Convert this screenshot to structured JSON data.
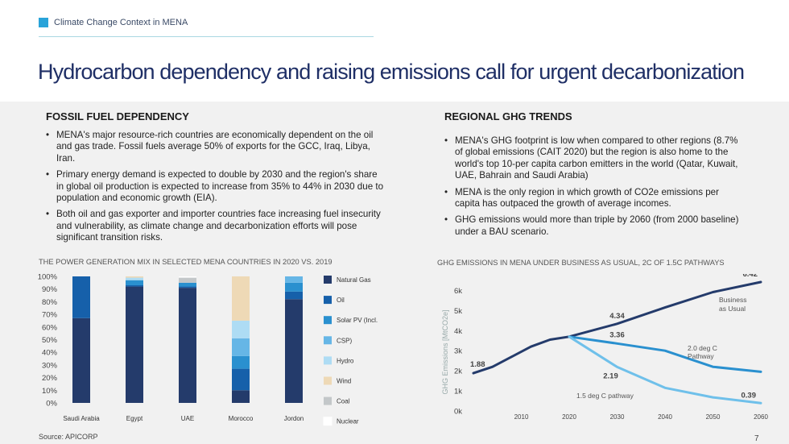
{
  "header": {
    "section": "Climate Change Context in MENA",
    "title": "Hydrocarbon dependency and raising emissions call for urgent decarbonization"
  },
  "left": {
    "heading": "FOSSIL FUEL DEPENDENCY",
    "bullets": [
      "MENA's major resource-rich countries are economically dependent on the oil and gas trade. Fossil fuels average 50% of exports for the GCC, Iraq, Libya, Iran.",
      "Primary energy demand is expected to double by 2030 and the region's share in global oil production is expected to increase from 35% to 44% in 2030 due to population and economic growth (EIA).",
      "Both oil and gas exporter and importer countries face increasing fuel insecurity and vulnerability, as climate change and decarbonization efforts will pose significant transition risks."
    ],
    "chart_title": "THE POWER GENERATION MIX IN SELECTED MENA COUNTRIES IN 2020 VS. 2019"
  },
  "right": {
    "heading": "REGIONAL GHG TRENDS",
    "bullets": [
      "MENA's GHG footprint is low when compared to other regions (8.7% of global emissions (CAIT 2020) but the region is also home to the world's top 10-per capita carbon emitters in the world (Qatar, Kuwait, UAE, Bahrain and Saudi Arabia)",
      "MENA is the only region in which growth of CO2e emissions per capita has outpaced the growth of average incomes.",
      "GHG emissions would more than triple by 2060 (from 2000 baseline) under a BAU scenario."
    ],
    "chart_title": "GHG EMISSIONS IN MENA UNDER BUSINESS AS USUAL, 2C OF 1.5C PATHWAYS"
  },
  "footer": {
    "source": "Source: APICORP",
    "page": "7"
  },
  "colors": {
    "accent": "#29a3d9",
    "title": "#1f2f66",
    "band": "#f1f1f1"
  },
  "chart_data": [
    {
      "type": "bar",
      "stacked": true,
      "categories": [
        "Saudi Arabia",
        "Egypt",
        "UAE",
        "Morocco",
        "Jordon"
      ],
      "yticks": [
        "0%",
        "10%",
        "20%",
        "30%",
        "40%",
        "50%",
        "60%",
        "70%",
        "80%",
        "90%",
        "100%"
      ],
      "ylim": [
        0,
        100
      ],
      "series": [
        {
          "name": "Natural Gas",
          "color": "#243b6b",
          "values": [
            67,
            92,
            91,
            10,
            82
          ]
        },
        {
          "name": "Oil",
          "color": "#1660aa",
          "values": [
            33,
            1,
            1,
            17,
            6
          ]
        },
        {
          "name": "Solar PV (Incl.",
          "color": "#2a90cf",
          "values": [
            0,
            4,
            3,
            10,
            7
          ]
        },
        {
          "name": "CSP)",
          "color": "#66b6e6",
          "values": [
            0,
            0,
            0,
            14,
            5
          ]
        },
        {
          "name": "Hydro",
          "color": "#aedcf4",
          "values": [
            0,
            2,
            0,
            14,
            0
          ]
        },
        {
          "name": "Wind",
          "color": "#eed9b6",
          "values": [
            0,
            1,
            0,
            35,
            0
          ]
        },
        {
          "name": "Coal",
          "color": "#c3c7c9",
          "values": [
            0,
            0,
            4,
            0,
            0
          ]
        },
        {
          "name": "Nuclear",
          "color": "#ffffff",
          "values": [
            0,
            0,
            1,
            0,
            0
          ]
        }
      ],
      "legend": "right"
    },
    {
      "type": "line",
      "ylabel": "GHG Emissions [MtCO2e]",
      "xticks": [
        2010,
        2020,
        2030,
        2040,
        2050,
        2060
      ],
      "yticks": [
        "0k",
        "1k",
        "2k",
        "3k",
        "4k",
        "5k",
        "6k"
      ],
      "xlim": [
        2000,
        2060
      ],
      "ylim": [
        0,
        6500
      ],
      "grid": false,
      "series": [
        {
          "name": "historical",
          "color": "#243b6b",
          "points": [
            [
              2000,
              1880
            ],
            [
              2004,
              2200
            ],
            [
              2008,
              2700
            ],
            [
              2012,
              3200
            ],
            [
              2016,
              3550
            ],
            [
              2020,
              3700
            ]
          ]
        },
        {
          "name": "Business as Usual",
          "color": "#243b6b",
          "points": [
            [
              2020,
              3700
            ],
            [
              2030,
              4340
            ],
            [
              2040,
              5150
            ],
            [
              2050,
              5920
            ],
            [
              2060,
              6420
            ]
          ]
        },
        {
          "name": "2.0 deg C Pathway",
          "color": "#2a90cf",
          "points": [
            [
              2020,
              3700
            ],
            [
              2030,
              3360
            ],
            [
              2040,
              3000
            ],
            [
              2050,
              2200
            ],
            [
              2060,
              1950
            ]
          ]
        },
        {
          "name": "1.5 deg C pathway",
          "color": "#6fc0ea",
          "points": [
            [
              2020,
              3700
            ],
            [
              2030,
              2190
            ],
            [
              2040,
              1150
            ],
            [
              2050,
              680
            ],
            [
              2060,
              390
            ]
          ]
        }
      ],
      "data_labels": [
        {
          "x": 2000,
          "y": 1880,
          "text": "1.88"
        },
        {
          "x": 2030,
          "y": 4340,
          "text": "4.34"
        },
        {
          "x": 2030,
          "y": 3360,
          "text": "3.36"
        },
        {
          "x": 2030,
          "y": 2190,
          "text": "2.19"
        },
        {
          "x": 2060,
          "y": 6420,
          "text": "6.42"
        },
        {
          "x": 2060,
          "y": 390,
          "text": "0.39"
        }
      ],
      "annotations": [
        "Business",
        "as Usual",
        "2.0 deg C",
        "Pathway",
        "1.5 deg C pathway"
      ]
    }
  ]
}
